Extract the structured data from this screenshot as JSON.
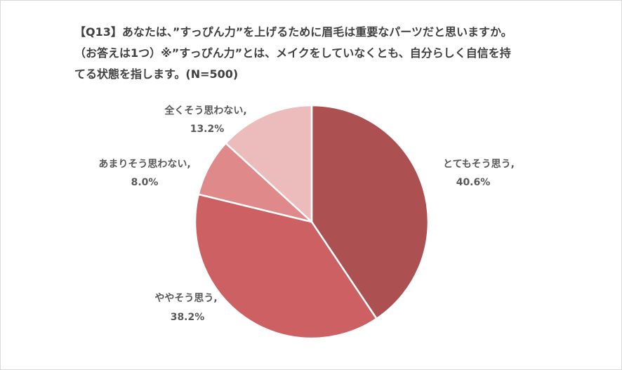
{
  "title_lines": [
    "【Q13】あなたは、”すっぴん力”を上げるために眉毛は重要なパーツだと思いますか。",
    "（お答えは1つ）※”すっぴん力”とは、メイクをしていなくとも、自分らしく自信を持",
    "てる状態を指します。(N=500)"
  ],
  "chart_data": {
    "type": "pie",
    "title": "【Q13】あなたは、”すっぴん力”を上げるために眉毛は重要なパーツだと思いますか。（お答えは1つ）※”すっぴん力”とは、メイクをしていなくとも、自分らしく自信を持てる状態を指します。(N=500)",
    "start": "12 o'clock, clockwise",
    "slices": [
      {
        "name": "とてもそう思う,",
        "value": 40.6,
        "label": "40.6%",
        "color": "#ad5052"
      },
      {
        "name": "ややそう思う,",
        "value": 38.2,
        "label": "38.2%",
        "color": "#cd6062"
      },
      {
        "name": "あまりそう思わない,",
        "value": 8.0,
        "label": "8.0%",
        "color": "#df898a"
      },
      {
        "name": "全くそう思わない,",
        "value": 13.2,
        "label": "13.2%",
        "color": "#ecbcbc"
      }
    ]
  }
}
